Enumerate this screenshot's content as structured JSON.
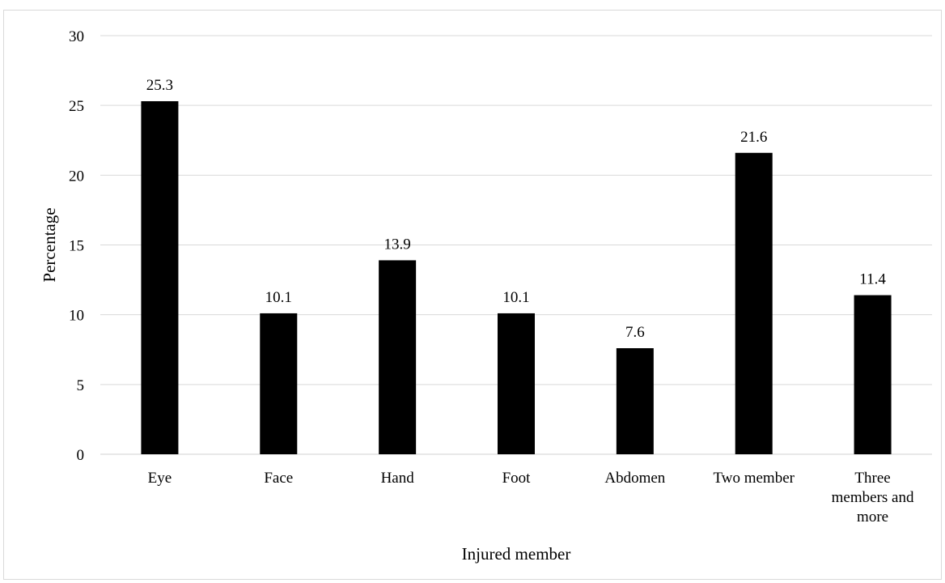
{
  "chart_data": {
    "type": "bar",
    "categories": [
      [
        "Eye"
      ],
      [
        "Face"
      ],
      [
        "Hand"
      ],
      [
        "Foot"
      ],
      [
        "Abdomen"
      ],
      [
        "Two member"
      ],
      [
        "Three",
        "members and",
        "more"
      ]
    ],
    "values": [
      25.3,
      10.1,
      13.9,
      10.1,
      7.6,
      21.6,
      11.4
    ],
    "data_labels": [
      "25.3",
      "10.1",
      "13.9",
      "10.1",
      "7.6",
      "21.6",
      "11.4"
    ],
    "title": "",
    "xlabel": "Injured member",
    "ylabel": "Percentage",
    "ylim": [
      0,
      30
    ],
    "yticks": [
      0,
      5,
      10,
      15,
      20,
      25,
      30
    ],
    "grid": true,
    "bar_color": "#000000",
    "grid_color": "#d9d9d9"
  }
}
